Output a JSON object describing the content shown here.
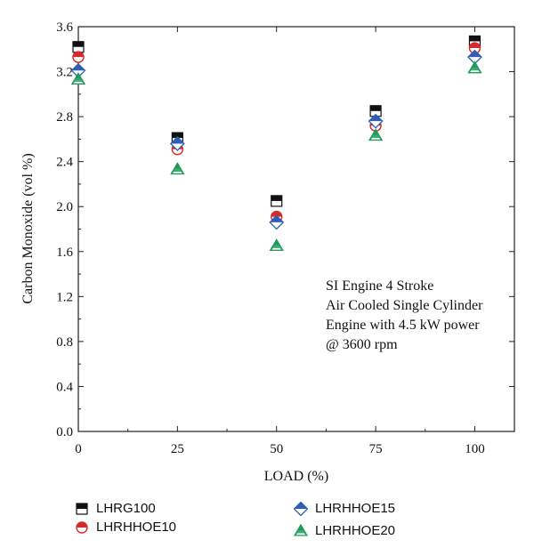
{
  "chart_data": {
    "type": "scatter",
    "xlabel": "LOAD (%)",
    "ylabel": "Carbon Monoxide (vol %)",
    "xlim": [
      0,
      110
    ],
    "ylim": [
      0,
      3.6
    ],
    "x_ticks": [
      "0",
      "25",
      "50",
      "75",
      "100"
    ],
    "y_ticks": [
      "0.0",
      "0.4",
      "0.8",
      "1.2",
      "1.6",
      "2.0",
      "2.4",
      "2.8",
      "3.2",
      "3.6"
    ],
    "annotation": [
      "SI Engine 4 Stroke",
      "Air Cooled Single Cylinder",
      "Engine with 4.5 kW power",
      "@ 3600 rpm"
    ],
    "grid": false,
    "legend_position": "bottom",
    "x": [
      0,
      25,
      50,
      75,
      100
    ],
    "series": [
      {
        "name": "LHRG100",
        "marker": "half-square",
        "color": "#111111",
        "values": [
          3.42,
          2.61,
          2.05,
          2.85,
          3.47
        ]
      },
      {
        "name": "LHRHHOE10",
        "marker": "half-circle",
        "color": "#d62b2b",
        "values": [
          3.33,
          2.51,
          1.91,
          2.72,
          3.41
        ]
      },
      {
        "name": "LHRHHOE15",
        "marker": "half-diamond",
        "color": "#2f5fb3",
        "values": [
          3.21,
          2.56,
          1.86,
          2.76,
          3.33
        ]
      },
      {
        "name": "LHRHHOE20",
        "marker": "half-triangle",
        "color": "#1e9a5a",
        "values": [
          3.13,
          2.33,
          1.65,
          2.63,
          3.23
        ]
      }
    ]
  }
}
